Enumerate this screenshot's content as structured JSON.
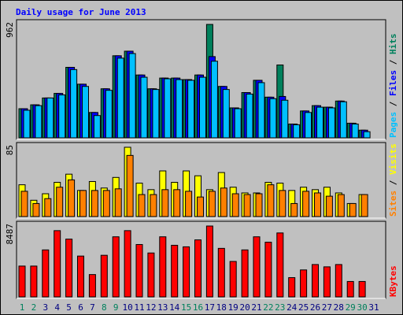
{
  "chart_data": [
    {
      "type": "bar",
      "title": "Daily usage for June 2013",
      "categories": [
        "1",
        "2",
        "3",
        "4",
        "5",
        "6",
        "7",
        "8",
        "9",
        "10",
        "11",
        "12",
        "13",
        "14",
        "15",
        "16",
        "17",
        "18",
        "19",
        "20",
        "21",
        "22",
        "23",
        "24",
        "25",
        "26",
        "27",
        "28",
        "29",
        "30",
        "31"
      ],
      "label_color": "#000080",
      "weekend_label_color": "#00805c",
      "weekend": [
        0,
        1,
        7,
        8,
        14,
        15,
        21,
        22,
        28,
        29
      ],
      "legend_separator": " / ",
      "ylim": [
        0,
        962
      ],
      "series": [
        {
          "name": "Hits",
          "color": "#00805c",
          "values": [
            247,
            280,
            338,
            377,
            598,
            455,
            215,
            416,
            696,
            735,
            533,
            416,
            507,
            507,
            494,
            533,
            962,
            436,
            254,
            384,
            488,
            345,
            618,
            117,
            228,
            273,
            260,
            312,
            124,
            65,
            null
          ]
        },
        {
          "name": "Files",
          "color": "#0000ff",
          "values": [
            247,
            280,
            338,
            377,
            598,
            455,
            215,
            416,
            696,
            735,
            533,
            416,
            507,
            507,
            494,
            533,
            689,
            436,
            254,
            384,
            488,
            345,
            351,
            117,
            228,
            273,
            260,
            312,
            124,
            65,
            null
          ]
        },
        {
          "name": "Pages",
          "color": "#00c0ff",
          "values": [
            234,
            273,
            338,
            364,
            579,
            436,
            189,
            403,
            676,
            715,
            514,
            410,
            501,
            494,
            488,
            514,
            650,
            410,
            247,
            371,
            468,
            332,
            319,
            111,
            215,
            260,
            254,
            306,
            117,
            52,
            null
          ]
        }
      ]
    },
    {
      "type": "bar",
      "ylim": [
        0,
        85
      ],
      "series": [
        {
          "name": "Visits",
          "color": "#ffff00",
          "values": [
            39,
            20,
            28,
            42,
            52,
            32,
            43,
            35,
            48,
            85,
            41,
            33,
            56,
            42,
            56,
            50,
            33,
            54,
            36,
            29,
            29,
            42,
            41,
            32,
            36,
            33,
            36,
            29,
            16,
            27,
            null
          ]
        },
        {
          "name": "Sites",
          "color": "#ff8000",
          "values": [
            31,
            16,
            22,
            36,
            45,
            32,
            32,
            32,
            34,
            75,
            27,
            27,
            33,
            33,
            31,
            24,
            31,
            35,
            28,
            27,
            28,
            39,
            32,
            16,
            31,
            29,
            25,
            27,
            16,
            27,
            null
          ]
        }
      ]
    },
    {
      "type": "bar",
      "ylim": [
        0,
        8487
      ],
      "series": [
        {
          "name": "KBytes",
          "color": "#ff0000",
          "values": [
            3690,
            3690,
            5627,
            7934,
            6919,
            4889,
            2675,
            4982,
            7196,
            7934,
            6273,
            5258,
            7196,
            6181,
            5996,
            6827,
            8487,
            5812,
            4244,
            5627,
            7196,
            6550,
            7657,
            2306,
            3229,
            3875,
            3598,
            3875,
            1845,
            1845,
            null
          ]
        }
      ]
    }
  ]
}
